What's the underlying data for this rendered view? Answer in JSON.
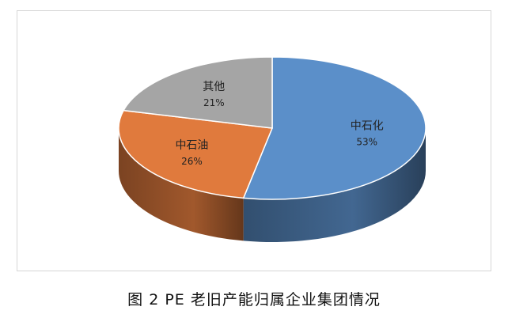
{
  "figure": {
    "caption": "图 2  PE 老旧产能归属企业集团情况"
  },
  "chart_data": {
    "type": "pie",
    "style": "3d",
    "slices": [
      {
        "label": "中石化",
        "value": 53,
        "value_label": "53%",
        "color": "#5b8fc9"
      },
      {
        "label": "中石油",
        "value": 26,
        "value_label": "26%",
        "color": "#e07a3d"
      },
      {
        "label": "其他",
        "value": 21,
        "value_label": "21%",
        "color": "#a5a5a5"
      }
    ]
  }
}
